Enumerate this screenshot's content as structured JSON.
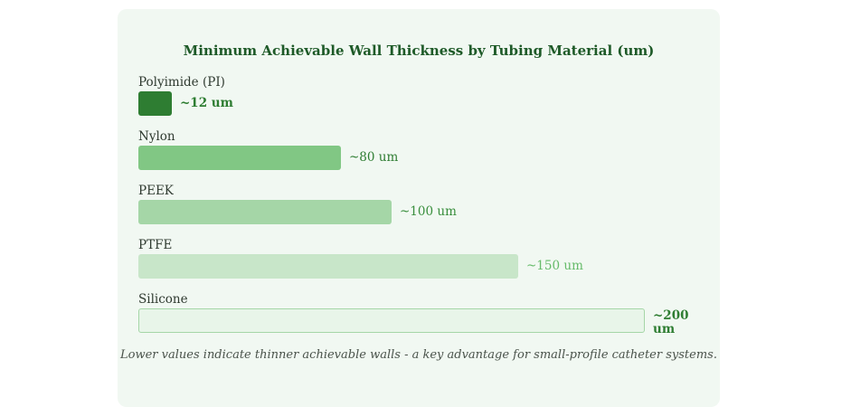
{
  "chart_data": {
    "type": "bar",
    "orientation": "horizontal",
    "title": "Minimum Achievable Wall Thickness by Tubing Material (um)",
    "unit": "um",
    "categories": [
      "Polyimide (PI)",
      "Nylon",
      "PEEK",
      "PTFE",
      "Silicone"
    ],
    "values": [
      12,
      80,
      100,
      150,
      200
    ],
    "value_labels": [
      "~12 um",
      "~80 um",
      "~100 um",
      "~150 um",
      "~200 um"
    ],
    "bar_colors": [
      "#2e7d32",
      "#81c784",
      "#a5d6a7",
      "#c8e6c9",
      "#e8f5e9"
    ],
    "label_colors": [
      "#2e7d32",
      "#2e7d32",
      "#388e3c",
      "#66bb6a",
      "#2e7d32"
    ],
    "emphasized_index": 0,
    "xlim": [
      0,
      200
    ],
    "grid": false,
    "legend": "none"
  },
  "footnote": "Lower values indicate thinner achievable walls - a key advantage for small-profile catheter systems."
}
